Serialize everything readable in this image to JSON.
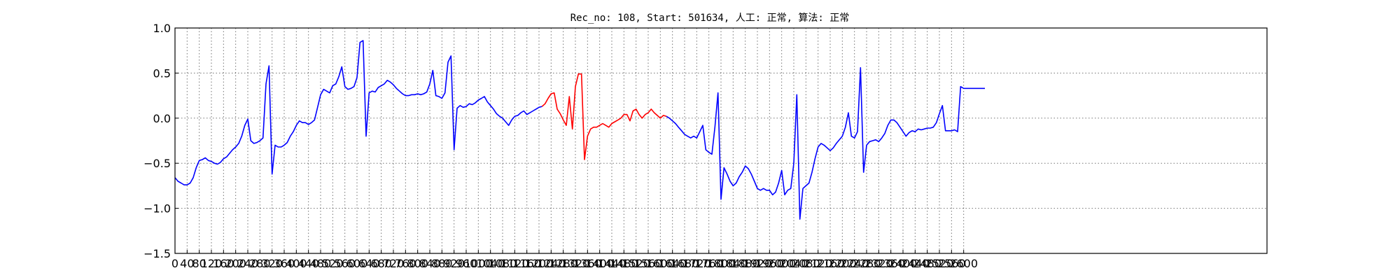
{
  "chart_data": {
    "type": "line",
    "title": "Rec_no: 108, Start: 501634, 人工: 正常, 算法: 正常",
    "xlabel": "",
    "ylabel": "",
    "xlim": [
      0,
      3600
    ],
    "ylim": [
      -1.5,
      1.0
    ],
    "grid": true,
    "y_ticks": [
      -1.5,
      -1.0,
      -0.5,
      0.0,
      0.5,
      1.0
    ],
    "y_tick_labels": [
      "−1.5",
      "−1.0",
      "−0.5",
      "0.0",
      "0.5",
      "1.0"
    ],
    "x_ticks": [
      0,
      40,
      80,
      120,
      160,
      200,
      240,
      280,
      320,
      360,
      400,
      440,
      480,
      520,
      560,
      600,
      640,
      680,
      720,
      760,
      800,
      840,
      880,
      920,
      960,
      1000,
      1040,
      1080,
      1120,
      1160,
      1200,
      1240,
      1280,
      1320,
      1360,
      1400,
      1440,
      1480,
      1520,
      1560,
      1600,
      1640,
      1680,
      1720,
      1760,
      1800,
      1840,
      1880,
      1920,
      1960,
      2000,
      2040,
      2080,
      2120,
      2160,
      2200,
      2240,
      2280,
      2320,
      2360,
      2400,
      2440,
      2480,
      2520,
      2560,
      2600
    ],
    "x_tick_labels": [
      "0",
      "40",
      "80",
      "120",
      "160",
      "200",
      "240",
      "280",
      "320",
      "360",
      "400",
      "440",
      "480",
      "520",
      "560",
      "600",
      "640",
      "680",
      "720",
      "760",
      "800",
      "840",
      "880",
      "920",
      "960",
      "1000",
      "1040",
      "1080",
      "1120",
      "1160",
      "1200",
      "1240",
      "1280",
      "1320",
      "1360",
      "1400",
      "1440",
      "1480",
      "1520",
      "1560",
      "1600",
      "1640",
      "1680",
      "1720",
      "1760",
      "1800",
      "1840",
      "1880",
      "1920",
      "1960",
      "2000",
      "2040",
      "2080",
      "2120",
      "2160",
      "2200",
      "2240",
      "2280",
      "2320",
      "2360",
      "2400",
      "2440",
      "2480",
      "2520",
      "2560",
      "2600"
    ],
    "series": [
      {
        "color": "#0000ff",
        "x": [
          0,
          10,
          20,
          30,
          40,
          50,
          60,
          70,
          80,
          90,
          100,
          110,
          120,
          130,
          140,
          150,
          160,
          170,
          180,
          190,
          200,
          210,
          220,
          230,
          240,
          250,
          260,
          270,
          280,
          290,
          300,
          310,
          320,
          330,
          340,
          350,
          360,
          370,
          380,
          390,
          400,
          410,
          420,
          430,
          440,
          450,
          460,
          470,
          480,
          490,
          500,
          510,
          520,
          530,
          540,
          550,
          560,
          570,
          580,
          590,
          600,
          610,
          620,
          630,
          640,
          650,
          660,
          670,
          680,
          690,
          700,
          710,
          720,
          730,
          740,
          750,
          760,
          770,
          780,
          790,
          800,
          810,
          820,
          830,
          840,
          850,
          860,
          870,
          880,
          890,
          900,
          910,
          920,
          930,
          940,
          950,
          960,
          970,
          980,
          990,
          1000,
          1010,
          1020,
          1030,
          1040,
          1050,
          1060,
          1070,
          1080,
          1090,
          1100,
          1110,
          1120,
          1130,
          1140,
          1150,
          1160,
          1170,
          1180,
          1190,
          1200,
          1210
        ],
        "y": [
          -0.66,
          -0.7,
          -0.72,
          -0.74,
          -0.74,
          -0.72,
          -0.66,
          -0.55,
          -0.47,
          -0.46,
          -0.44,
          -0.47,
          -0.48,
          -0.5,
          -0.51,
          -0.49,
          -0.45,
          -0.43,
          -0.39,
          -0.35,
          -0.32,
          -0.28,
          -0.2,
          -0.08,
          -0.01,
          -0.25,
          -0.28,
          -0.27,
          -0.25,
          -0.22,
          0.38,
          0.58,
          -0.62,
          -0.3,
          -0.32,
          -0.32,
          -0.3,
          -0.27,
          -0.2,
          -0.15,
          -0.08,
          -0.03,
          -0.05,
          -0.05,
          -0.07,
          -0.05,
          -0.02,
          0.12,
          0.26,
          0.32,
          0.3,
          0.28,
          0.36,
          0.38,
          0.46,
          0.57,
          0.35,
          0.32,
          0.33,
          0.35,
          0.45,
          0.84,
          0.86,
          -0.2,
          0.28,
          0.3,
          0.29,
          0.34,
          0.36,
          0.38,
          0.42,
          0.4,
          0.37,
          0.33,
          0.3,
          0.27,
          0.25,
          0.25,
          0.26,
          0.26,
          0.27,
          0.26,
          0.27,
          0.29,
          0.38,
          0.53,
          0.25,
          0.24,
          0.22,
          0.28,
          0.62,
          0.69,
          -0.35,
          0.11,
          0.14,
          0.12,
          0.13,
          0.16,
          0.15,
          0.17,
          0.2,
          0.22,
          0.24,
          0.18,
          0.14,
          0.1,
          0.05,
          0.02,
          0.0,
          -0.04,
          -0.08,
          -0.02,
          0.02,
          0.03,
          0.06,
          0.08,
          0.04,
          0.06,
          0.08,
          0.1,
          0.12,
          0.13
        ]
      },
      {
        "color": "#ff0000",
        "x": [
          1210,
          1220,
          1230,
          1240,
          1250,
          1260,
          1270,
          1280,
          1290,
          1300,
          1310,
          1320,
          1330,
          1340,
          1350,
          1360,
          1370,
          1380,
          1390,
          1400,
          1410,
          1420,
          1430,
          1440,
          1450,
          1460,
          1470,
          1480,
          1490,
          1500,
          1510,
          1520,
          1530,
          1540,
          1550,
          1560,
          1570,
          1580,
          1590,
          1600,
          1610,
          1620
        ],
        "y": [
          0.13,
          0.16,
          0.22,
          0.27,
          0.28,
          0.1,
          0.05,
          -0.02,
          -0.08,
          0.24,
          -0.12,
          0.35,
          0.49,
          0.49,
          -0.46,
          -0.2,
          -0.12,
          -0.1,
          -0.1,
          -0.08,
          -0.06,
          -0.08,
          -0.1,
          -0.06,
          -0.04,
          -0.02,
          0.0,
          0.04,
          0.04,
          -0.03,
          0.08,
          0.1,
          0.04,
          0.0,
          0.04,
          0.06,
          0.1,
          0.06,
          0.03,
          0.0,
          0.03,
          0.02
        ]
      },
      {
        "color": "#0000ff",
        "x": [
          1620,
          1630,
          1640,
          1650,
          1660,
          1670,
          1680,
          1690,
          1700,
          1710,
          1720,
          1730,
          1740,
          1750,
          1760,
          1770,
          1780,
          1790,
          1800,
          1810,
          1820,
          1830,
          1840,
          1850,
          1860,
          1870,
          1880,
          1890,
          1900,
          1910,
          1920,
          1930,
          1940,
          1950,
          1960,
          1970,
          1980,
          1990,
          2000,
          2010,
          2020,
          2030,
          2040,
          2050,
          2060,
          2070,
          2080,
          2090,
          2100,
          2110,
          2120,
          2130,
          2140,
          2150,
          2160,
          2170,
          2180,
          2190,
          2200,
          2210,
          2220,
          2230,
          2240,
          2250,
          2260,
          2270,
          2280,
          2290,
          2300,
          2310,
          2320,
          2330,
          2340,
          2350,
          2360,
          2370,
          2380,
          2390,
          2400,
          2410,
          2420,
          2430,
          2440,
          2450,
          2460,
          2470,
          2480,
          2490,
          2500,
          2510,
          2520,
          2530,
          2540,
          2550,
          2560,
          2570,
          2580,
          2590,
          2600,
          2610,
          2620,
          2630,
          2640,
          2650,
          2660,
          2670
        ],
        "y": [
          0.02,
          0.0,
          -0.03,
          -0.06,
          -0.1,
          -0.14,
          -0.18,
          -0.2,
          -0.22,
          -0.2,
          -0.22,
          -0.15,
          -0.08,
          -0.35,
          -0.38,
          -0.4,
          -0.1,
          0.28,
          -0.9,
          -0.55,
          -0.62,
          -0.7,
          -0.75,
          -0.72,
          -0.65,
          -0.6,
          -0.53,
          -0.56,
          -0.62,
          -0.7,
          -0.78,
          -0.8,
          -0.78,
          -0.8,
          -0.8,
          -0.85,
          -0.82,
          -0.72,
          -0.58,
          -0.85,
          -0.8,
          -0.78,
          -0.5,
          0.26,
          -1.12,
          -0.78,
          -0.75,
          -0.72,
          -0.6,
          -0.45,
          -0.32,
          -0.28,
          -0.3,
          -0.33,
          -0.36,
          -0.33,
          -0.28,
          -0.24,
          -0.2,
          -0.1,
          0.06,
          -0.2,
          -0.22,
          -0.15,
          0.56,
          -0.6,
          -0.3,
          -0.26,
          -0.25,
          -0.24,
          -0.26,
          -0.22,
          -0.17,
          -0.08,
          -0.02,
          -0.02,
          -0.05,
          -0.1,
          -0.15,
          -0.2,
          -0.16,
          -0.14,
          -0.15,
          -0.12,
          -0.13,
          -0.12,
          -0.11,
          -0.11,
          -0.1,
          -0.05,
          0.05,
          0.14,
          -0.14,
          -0.14,
          -0.14,
          -0.13,
          -0.15,
          0.35,
          0.33,
          0.33,
          0.33,
          0.33,
          0.33,
          0.33,
          0.33,
          0.33
        ]
      }
    ]
  }
}
